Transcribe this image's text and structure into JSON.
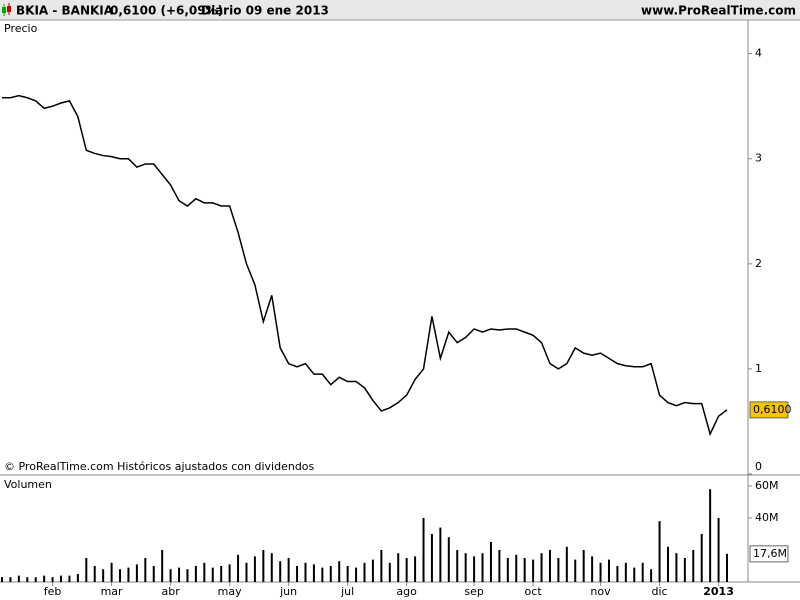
{
  "header": {
    "symbol": "BKIA - BANKIA",
    "quote": "0,6100 (+6,09%)",
    "period": "Diario  09 ene 2013",
    "site": "www.ProRealTime.com"
  },
  "chart_data": [
    {
      "type": "line",
      "title": "Precio",
      "footnote": "© ProRealTime.com  Históricos ajustados con dividendos",
      "color": "#000000",
      "values": [
        3.58,
        3.58,
        3.6,
        3.58,
        3.55,
        3.48,
        3.5,
        3.53,
        3.55,
        3.4,
        3.08,
        3.05,
        3.03,
        3.02,
        3.0,
        3.0,
        2.92,
        2.95,
        2.95,
        2.85,
        2.75,
        2.6,
        2.55,
        2.62,
        2.58,
        2.58,
        2.55,
        2.55,
        2.3,
        2.0,
        1.8,
        1.45,
        1.7,
        1.2,
        1.05,
        1.02,
        1.05,
        0.95,
        0.95,
        0.85,
        0.92,
        0.88,
        0.88,
        0.82,
        0.7,
        0.6,
        0.63,
        0.68,
        0.75,
        0.9,
        1.0,
        1.5,
        1.1,
        1.35,
        1.25,
        1.3,
        1.38,
        1.35,
        1.38,
        1.37,
        1.38,
        1.38,
        1.35,
        1.32,
        1.25,
        1.05,
        1.0,
        1.05,
        1.2,
        1.15,
        1.13,
        1.15,
        1.1,
        1.05,
        1.03,
        1.02,
        1.02,
        1.05,
        0.75,
        0.68,
        0.65,
        0.68,
        0.67,
        0.67,
        0.38,
        0.55,
        0.61
      ],
      "last_value_label": "0,6100",
      "last_value_color": "#f5c400",
      "ylim": [
        0,
        4.32
      ],
      "yticks": [
        0,
        1,
        2,
        3,
        4
      ]
    },
    {
      "type": "bar",
      "title": "Volumen",
      "color": "#000000",
      "values": [
        3000000,
        3000000,
        4000000,
        3000000,
        3000000,
        4000000,
        3000000,
        4000000,
        4000000,
        5000000,
        15000000,
        10000000,
        8000000,
        12000000,
        8000000,
        9000000,
        11000000,
        15000000,
        10000000,
        20000000,
        8000000,
        9000000,
        8000000,
        10000000,
        12000000,
        9000000,
        10000000,
        11000000,
        17000000,
        12000000,
        16000000,
        20000000,
        18000000,
        13000000,
        15000000,
        10000000,
        12000000,
        11000000,
        9000000,
        10000000,
        13000000,
        10000000,
        9000000,
        12000000,
        14000000,
        20000000,
        12000000,
        18000000,
        15000000,
        16000000,
        40000000,
        30000000,
        34000000,
        28000000,
        20000000,
        18000000,
        16000000,
        18000000,
        25000000,
        20000000,
        15000000,
        17000000,
        15000000,
        14000000,
        18000000,
        20000000,
        15000000,
        22000000,
        14000000,
        20000000,
        16000000,
        12000000,
        14000000,
        10000000,
        12000000,
        9000000,
        12000000,
        8000000,
        38000000,
        22000000,
        18000000,
        15000000,
        20000000,
        30000000,
        58000000,
        40000000,
        17600000
      ],
      "last_value_label": "17,6M",
      "ylim": [
        0,
        65000000
      ],
      "yticks": [
        {
          "value": 40000000,
          "label": "40M"
        },
        {
          "value": 60000000,
          "label": "60M"
        }
      ],
      "months": [
        {
          "label": "feb",
          "index": 6
        },
        {
          "label": "mar",
          "index": 13
        },
        {
          "label": "abr",
          "index": 20
        },
        {
          "label": "may",
          "index": 27
        },
        {
          "label": "jun",
          "index": 34
        },
        {
          "label": "jul",
          "index": 41
        },
        {
          "label": "ago",
          "index": 48
        },
        {
          "label": "sep",
          "index": 56
        },
        {
          "label": "oct",
          "index": 63
        },
        {
          "label": "nov",
          "index": 71
        },
        {
          "label": "dic",
          "index": 78
        },
        {
          "label": "2013",
          "index": 85
        }
      ]
    }
  ]
}
